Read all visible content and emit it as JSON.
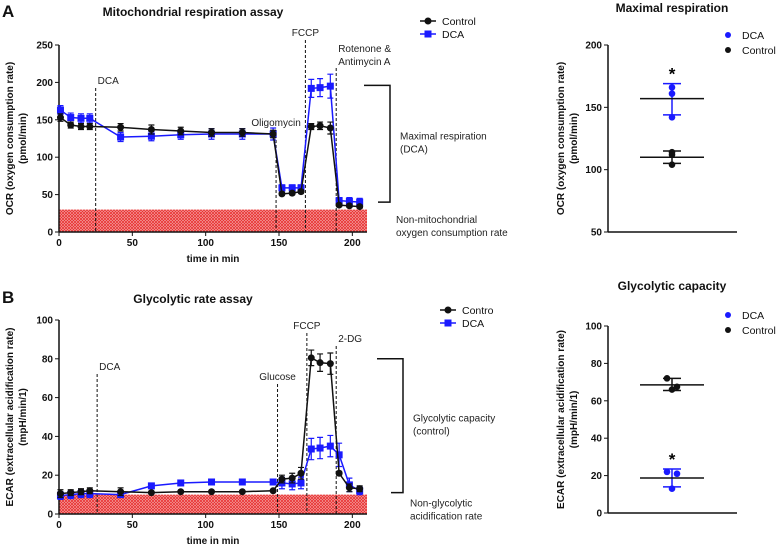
{
  "chart_data": [
    {
      "type": "line",
      "panel": "A",
      "title": "Mitochondrial respiration assay",
      "xlabel": "time in min",
      "ylabel": "OCR (oxygen consumption rate)",
      "ylabel2": "(pmol/min)",
      "xlim": [
        0,
        210
      ],
      "ylim": [
        0,
        250
      ],
      "xticks": [
        0,
        50,
        100,
        150,
        200
      ],
      "yticks": [
        0,
        50,
        100,
        150,
        200,
        250
      ],
      "x": [
        1,
        8,
        15,
        21,
        42,
        63,
        83,
        104,
        125,
        146,
        152,
        159,
        165,
        172,
        178,
        185,
        191,
        198,
        205
      ],
      "series": [
        {
          "name": "Control",
          "color": "#111111",
          "marker": "circle",
          "values": [
            153,
            143,
            141,
            141,
            140,
            137,
            135,
            133,
            133,
            131,
            51,
            52,
            54,
            141,
            142,
            139,
            36,
            35,
            34
          ],
          "errors": [
            5,
            4,
            4,
            4,
            5,
            6,
            5,
            5,
            5,
            5,
            2,
            2,
            2,
            4,
            5,
            8,
            2,
            2,
            2
          ]
        },
        {
          "name": "DCA",
          "color": "#1a1aff",
          "marker": "square",
          "values": [
            163,
            153,
            152,
            152,
            127,
            128,
            130,
            131,
            131,
            131,
            59,
            59,
            59,
            192,
            193,
            195,
            42,
            41,
            40
          ],
          "errors": [
            6,
            6,
            6,
            6,
            6,
            6,
            6,
            7,
            7,
            8,
            4,
            4,
            4,
            12,
            12,
            16,
            4,
            5,
            5
          ]
        }
      ],
      "injections": [
        {
          "label": "DCA",
          "x": 25
        },
        {
          "label": "Oligomycin",
          "x": 148
        },
        {
          "label": "FCCP",
          "x": 168
        },
        {
          "label": "Rotenone &",
          "label2": "Antimycin  A",
          "x": 189
        }
      ],
      "baseline_band": {
        "ymax": 30,
        "xmax": 210,
        "label": "Non-mitochondrial",
        "label2": "oxygen consumption rate"
      },
      "bracket": {
        "from": 196,
        "to": 40,
        "label": "Maximal respiration",
        "label2": "(DCA)"
      },
      "legend": [
        "Control",
        "DCA"
      ]
    },
    {
      "type": "scatter",
      "panel": "A",
      "title": "Maximal respiration",
      "ylabel": "OCR (oxygen consumption rate)",
      "ylabel2": "(pmol/min)",
      "ylim": [
        50,
        200
      ],
      "yticks": [
        50,
        100,
        150,
        200
      ],
      "groups": [
        {
          "name": "DCA",
          "color": "#1a1aff",
          "points": [
            166,
            161,
            142
          ],
          "mean": 157,
          "sd_low": 144,
          "sd_high": 169,
          "annotation": "*"
        },
        {
          "name": "Control",
          "color": "#111111",
          "points": [
            114,
            112,
            104
          ],
          "mean": 110,
          "sd_low": 105,
          "sd_high": 115
        }
      ],
      "legend": [
        "DCA",
        "Control"
      ]
    },
    {
      "type": "line",
      "panel": "B",
      "title": "Glycolytic rate assay",
      "xlabel": "time in min",
      "ylabel": "ECAR (extracellular acidification rate)",
      "ylabel2": "(mpH/min/1)",
      "xlim": [
        0,
        210
      ],
      "ylim": [
        0,
        100
      ],
      "xticks": [
        0,
        50,
        100,
        150,
        200
      ],
      "yticks": [
        0,
        20,
        40,
        60,
        80,
        100
      ],
      "x": [
        1,
        8,
        15,
        21,
        42,
        63,
        83,
        104,
        125,
        146,
        152,
        159,
        165,
        172,
        178,
        185,
        191,
        198,
        205
      ],
      "series": [
        {
          "name": "Contro",
          "color": "#111111",
          "marker": "circle",
          "values": [
            10.5,
            11,
            11.5,
            12,
            11.5,
            11,
            11.5,
            11.5,
            11.5,
            12,
            18,
            18.5,
            21,
            80.5,
            78,
            77.5,
            21,
            13.5,
            13
          ],
          "errors": [
            2,
            1.5,
            1.5,
            1.5,
            2,
            0.5,
            0.5,
            0.5,
            0.5,
            0.5,
            2,
            2.5,
            3,
            4,
            4.5,
            5.5,
            1,
            2,
            1.5
          ]
        },
        {
          "name": "DCA",
          "color": "#1a1aff",
          "marker": "square",
          "values": [
            9.5,
            10,
            10.5,
            10.5,
            10,
            14.5,
            16,
            16.5,
            16.5,
            16.5,
            16,
            15.5,
            16,
            33.5,
            34,
            35,
            30.5,
            15,
            12
          ],
          "errors": [
            2,
            2,
            2,
            2,
            1,
            1,
            0.5,
            0.5,
            0.5,
            1,
            3,
            3,
            3,
            5.5,
            5.5,
            5.5,
            6,
            3.5,
            2
          ]
        }
      ],
      "injections": [
        {
          "label": "DCA",
          "x": 26
        },
        {
          "label": "Glucose",
          "x": 149
        },
        {
          "label": "FCCP",
          "x": 169
        },
        {
          "label": "2-DG",
          "x": 189
        }
      ],
      "baseline_band": {
        "ymax": 10,
        "xmax": 210,
        "label": "Non-glycolytic",
        "label2": "acidification rate"
      },
      "bracket": {
        "from": 80,
        "to": 11,
        "label": "Glycolytic capacity",
        "label2": "(control)"
      },
      "legend": [
        "Contro",
        "DCA"
      ]
    },
    {
      "type": "scatter",
      "panel": "B",
      "title": "Glycolytic capacity",
      "ylabel": "ECAR (extracellular acidification rate)",
      "ylabel2": "(mpH/min/1)",
      "ylim": [
        0,
        100
      ],
      "yticks": [
        0,
        20,
        40,
        60,
        80,
        100
      ],
      "groups": [
        {
          "name": "DCA",
          "color": "#1a1aff",
          "points": [
            22,
            21,
            13
          ],
          "mean": 18.7,
          "sd_low": 14,
          "sd_high": 23.5,
          "annotation": "*"
        },
        {
          "name": "Control",
          "color": "#111111",
          "points": [
            72,
            67.5,
            66
          ],
          "mean": 68.5,
          "sd_low": 65.5,
          "sd_high": 72
        }
      ],
      "legend": [
        "DCA",
        "Control"
      ]
    }
  ]
}
